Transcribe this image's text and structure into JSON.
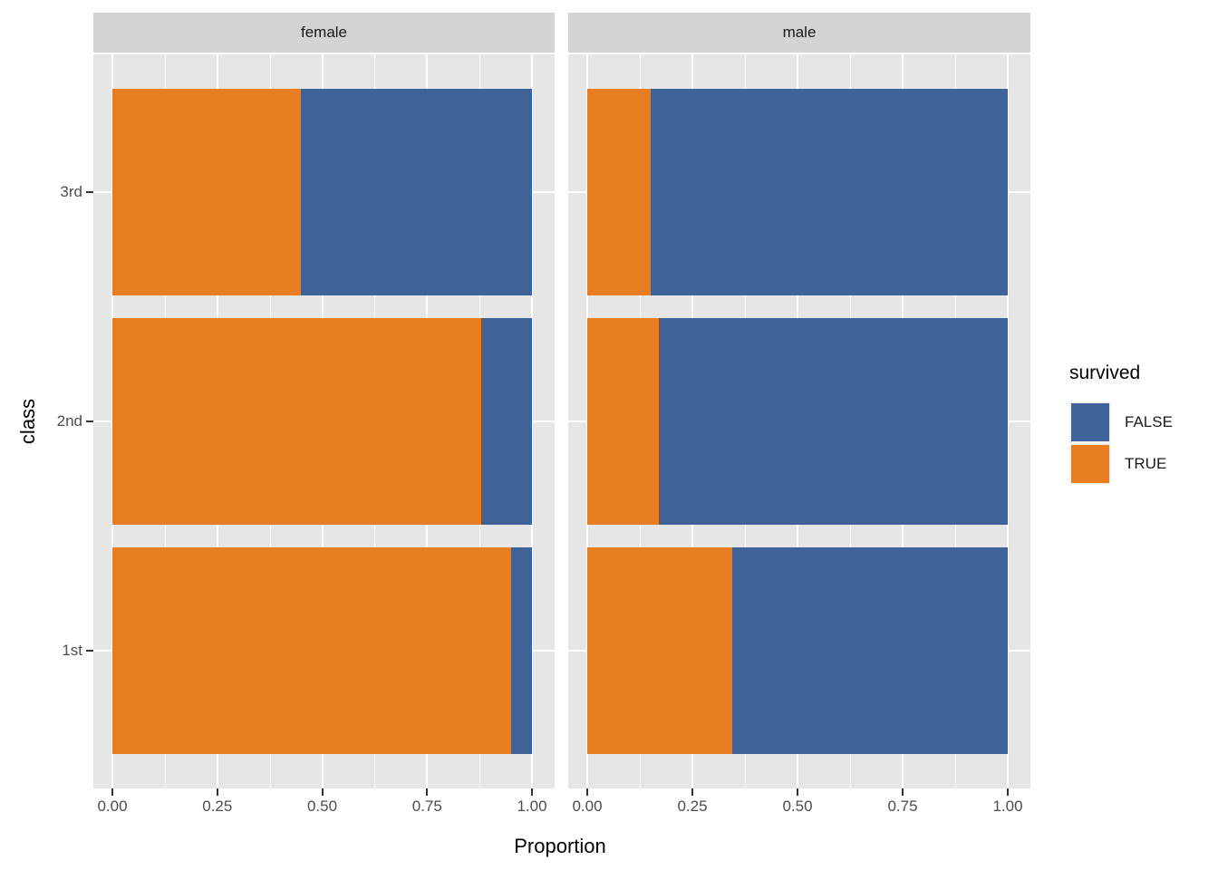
{
  "chart_data": {
    "type": "bar",
    "subtype": "horizontal-stacked-proportion-faceted",
    "xlabel": "Proportion",
    "ylabel": "class",
    "xlim": [
      0,
      1
    ],
    "grid": true,
    "x_ticks": [
      {
        "value": 0.0,
        "label": "0.00"
      },
      {
        "value": 0.25,
        "label": "0.25"
      },
      {
        "value": 0.5,
        "label": "0.50"
      },
      {
        "value": 0.75,
        "label": "0.75"
      },
      {
        "value": 1.0,
        "label": "1.00"
      }
    ],
    "x_minor_ticks": [
      0.125,
      0.375,
      0.625,
      0.875
    ],
    "categories_top_to_bottom": [
      "3rd",
      "2nd",
      "1st"
    ],
    "stack_order_from_zero": [
      "TRUE",
      "FALSE"
    ],
    "legend": {
      "title": "survived",
      "position": "right",
      "entries": [
        {
          "label": "FALSE",
          "color": "#3E6398"
        },
        {
          "label": "TRUE",
          "color": "#E87D22"
        }
      ]
    },
    "facets": [
      {
        "label": "female",
        "rows": [
          {
            "category": "3rd",
            "TRUE": 0.45,
            "FALSE": 0.55
          },
          {
            "category": "2nd",
            "TRUE": 0.88,
            "FALSE": 0.12
          },
          {
            "category": "1st",
            "TRUE": 0.95,
            "FALSE": 0.05
          }
        ]
      },
      {
        "label": "male",
        "rows": [
          {
            "category": "3rd",
            "TRUE": 0.15,
            "FALSE": 0.85
          },
          {
            "category": "2nd",
            "TRUE": 0.17,
            "FALSE": 0.83
          },
          {
            "category": "1st",
            "TRUE": 0.345,
            "FALSE": 0.655
          }
        ]
      }
    ]
  },
  "colors": {
    "true_fill": "#E87D22",
    "false_fill": "#3E6398",
    "panel_bg": "#E6E6E6",
    "strip_bg": "#D4D4D4",
    "gridline": "#FFFFFF",
    "tick": "#333333",
    "axis_text": "#4D4D4D",
    "strip_text": "#1A1A1A",
    "legend_key_bg": "#F2F2F2",
    "background": "#FFFFFF"
  }
}
